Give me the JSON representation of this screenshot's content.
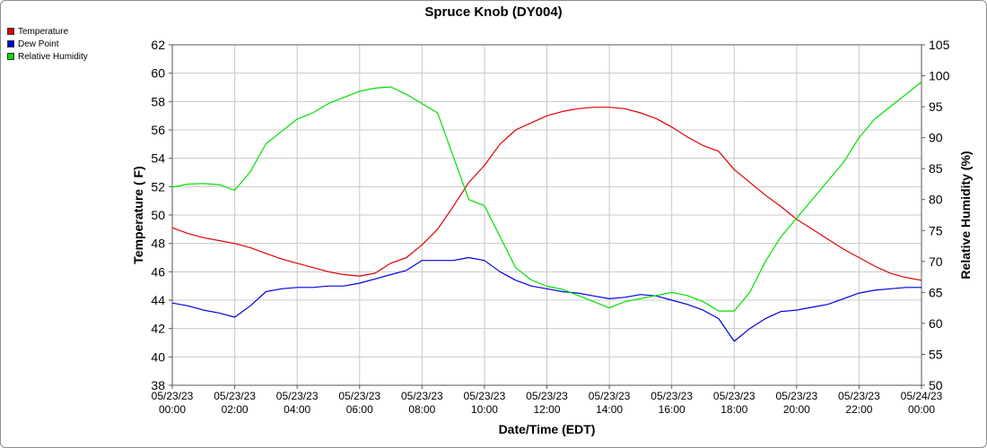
{
  "chart_data": {
    "type": "line",
    "title": "Spruce Knob (DY004)",
    "xlabel": "Date/Time (EDT)",
    "ylabel": "Temperature ( F)",
    "y2label": "Relative Humidity (%)",
    "ylim": [
      38,
      62
    ],
    "y2lim": [
      50,
      105
    ],
    "xlim_hours": [
      0,
      24
    ],
    "grid": true,
    "legend_position": "top-left",
    "y_ticks": [
      38,
      40,
      42,
      44,
      46,
      48,
      50,
      52,
      54,
      56,
      58,
      60,
      62
    ],
    "y2_ticks": [
      50,
      55,
      60,
      65,
      70,
      75,
      80,
      85,
      90,
      95,
      100,
      105
    ],
    "x_ticks": [
      {
        "date": "05/23/23",
        "time": "00:00",
        "hour": 0
      },
      {
        "date": "05/23/23",
        "time": "02:00",
        "hour": 2
      },
      {
        "date": "05/23/23",
        "time": "04:00",
        "hour": 4
      },
      {
        "date": "05/23/23",
        "time": "06:00",
        "hour": 6
      },
      {
        "date": "05/23/23",
        "time": "08:00",
        "hour": 8
      },
      {
        "date": "05/23/23",
        "time": "10:00",
        "hour": 10
      },
      {
        "date": "05/23/23",
        "time": "12:00",
        "hour": 12
      },
      {
        "date": "05/23/23",
        "time": "14:00",
        "hour": 14
      },
      {
        "date": "05/23/23",
        "time": "16:00",
        "hour": 16
      },
      {
        "date": "05/23/23",
        "time": "18:00",
        "hour": 18
      },
      {
        "date": "05/23/23",
        "time": "20:00",
        "hour": 20
      },
      {
        "date": "05/23/23",
        "time": "22:00",
        "hour": 22
      },
      {
        "date": "05/24/23",
        "time": "00:00",
        "hour": 24
      }
    ],
    "series": [
      {
        "name": "Temperature",
        "color": "#e00000",
        "axis": "left",
        "points": [
          [
            0,
            49.1
          ],
          [
            0.5,
            48.7
          ],
          [
            1,
            48.4
          ],
          [
            1.5,
            48.2
          ],
          [
            2,
            48.0
          ],
          [
            2.5,
            47.7
          ],
          [
            3,
            47.3
          ],
          [
            3.5,
            46.9
          ],
          [
            4,
            46.6
          ],
          [
            4.5,
            46.3
          ],
          [
            5,
            46.0
          ],
          [
            5.5,
            45.8
          ],
          [
            6,
            45.7
          ],
          [
            6.5,
            45.9
          ],
          [
            7,
            46.6
          ],
          [
            7.5,
            47.0
          ],
          [
            8,
            47.9
          ],
          [
            8.5,
            49.0
          ],
          [
            9,
            50.6
          ],
          [
            9.5,
            52.3
          ],
          [
            10,
            53.5
          ],
          [
            10.5,
            55.0
          ],
          [
            11,
            56.0
          ],
          [
            11.5,
            56.5
          ],
          [
            12,
            57.0
          ],
          [
            12.5,
            57.3
          ],
          [
            13,
            57.5
          ],
          [
            13.5,
            57.6
          ],
          [
            14,
            57.6
          ],
          [
            14.5,
            57.5
          ],
          [
            15,
            57.2
          ],
          [
            15.5,
            56.8
          ],
          [
            16,
            56.2
          ],
          [
            16.5,
            55.5
          ],
          [
            17,
            54.9
          ],
          [
            17.5,
            54.5
          ],
          [
            18,
            53.2
          ],
          [
            18.5,
            52.3
          ],
          [
            19,
            51.4
          ],
          [
            19.5,
            50.6
          ],
          [
            20,
            49.7
          ],
          [
            20.5,
            49.0
          ],
          [
            21,
            48.3
          ],
          [
            21.5,
            47.6
          ],
          [
            22,
            47.0
          ],
          [
            22.5,
            46.4
          ],
          [
            23,
            45.9
          ],
          [
            23.5,
            45.6
          ],
          [
            24,
            45.4
          ]
        ]
      },
      {
        "name": "Dew Point",
        "color": "#0000e0",
        "axis": "left",
        "points": [
          [
            0,
            43.8
          ],
          [
            0.5,
            43.6
          ],
          [
            1,
            43.3
          ],
          [
            1.5,
            43.1
          ],
          [
            2,
            42.8
          ],
          [
            2.5,
            43.6
          ],
          [
            3,
            44.6
          ],
          [
            3.5,
            44.8
          ],
          [
            4,
            44.9
          ],
          [
            4.5,
            44.9
          ],
          [
            5,
            45.0
          ],
          [
            5.5,
            45.0
          ],
          [
            6,
            45.2
          ],
          [
            6.5,
            45.5
          ],
          [
            7,
            45.8
          ],
          [
            7.5,
            46.1
          ],
          [
            8,
            46.8
          ],
          [
            8.5,
            46.8
          ],
          [
            9,
            46.8
          ],
          [
            9.5,
            47.0
          ],
          [
            10,
            46.8
          ],
          [
            10.5,
            46.0
          ],
          [
            11,
            45.4
          ],
          [
            11.5,
            45.0
          ],
          [
            12,
            44.8
          ],
          [
            12.5,
            44.6
          ],
          [
            13,
            44.5
          ],
          [
            13.5,
            44.3
          ],
          [
            14,
            44.1
          ],
          [
            14.5,
            44.2
          ],
          [
            15,
            44.4
          ],
          [
            15.5,
            44.3
          ],
          [
            16,
            44.0
          ],
          [
            16.5,
            43.7
          ],
          [
            17,
            43.3
          ],
          [
            17.5,
            42.7
          ],
          [
            18,
            41.1
          ],
          [
            18.5,
            42.0
          ],
          [
            19,
            42.7
          ],
          [
            19.5,
            43.2
          ],
          [
            20,
            43.3
          ],
          [
            20.5,
            43.5
          ],
          [
            21,
            43.7
          ],
          [
            21.5,
            44.1
          ],
          [
            22,
            44.5
          ],
          [
            22.5,
            44.7
          ],
          [
            23,
            44.8
          ],
          [
            23.5,
            44.9
          ],
          [
            24,
            44.9
          ]
        ]
      },
      {
        "name": "Relative Humidity",
        "color": "#00e000",
        "axis": "right",
        "points": [
          [
            0,
            82
          ],
          [
            0.5,
            82.5
          ],
          [
            1,
            82.6
          ],
          [
            1.5,
            82.4
          ],
          [
            2,
            81.5
          ],
          [
            2.5,
            84.5
          ],
          [
            3,
            89
          ],
          [
            3.5,
            91
          ],
          [
            4,
            93
          ],
          [
            4.5,
            94
          ],
          [
            5,
            95.5
          ],
          [
            5.5,
            96.5
          ],
          [
            6,
            97.5
          ],
          [
            6.5,
            98
          ],
          [
            7,
            98.2
          ],
          [
            7.5,
            97
          ],
          [
            8,
            95.5
          ],
          [
            8.5,
            94
          ],
          [
            9,
            87
          ],
          [
            9.5,
            80
          ],
          [
            10,
            79
          ],
          [
            10.5,
            74
          ],
          [
            11,
            69
          ],
          [
            11.5,
            67
          ],
          [
            12,
            66
          ],
          [
            12.5,
            65.5
          ],
          [
            13,
            64.5
          ],
          [
            13.5,
            63.5
          ],
          [
            14,
            62.5
          ],
          [
            14.5,
            63.5
          ],
          [
            15,
            64
          ],
          [
            15.5,
            64.5
          ],
          [
            16,
            65
          ],
          [
            16.5,
            64.5
          ],
          [
            17,
            63.5
          ],
          [
            17.5,
            62
          ],
          [
            18,
            62
          ],
          [
            18.5,
            65
          ],
          [
            19,
            70
          ],
          [
            19.5,
            74
          ],
          [
            20,
            77
          ],
          [
            20.5,
            80
          ],
          [
            21,
            83
          ],
          [
            21.5,
            86
          ],
          [
            22,
            90
          ],
          [
            22.5,
            93
          ],
          [
            23,
            95
          ],
          [
            23.5,
            97
          ],
          [
            24,
            99
          ]
        ]
      }
    ]
  }
}
